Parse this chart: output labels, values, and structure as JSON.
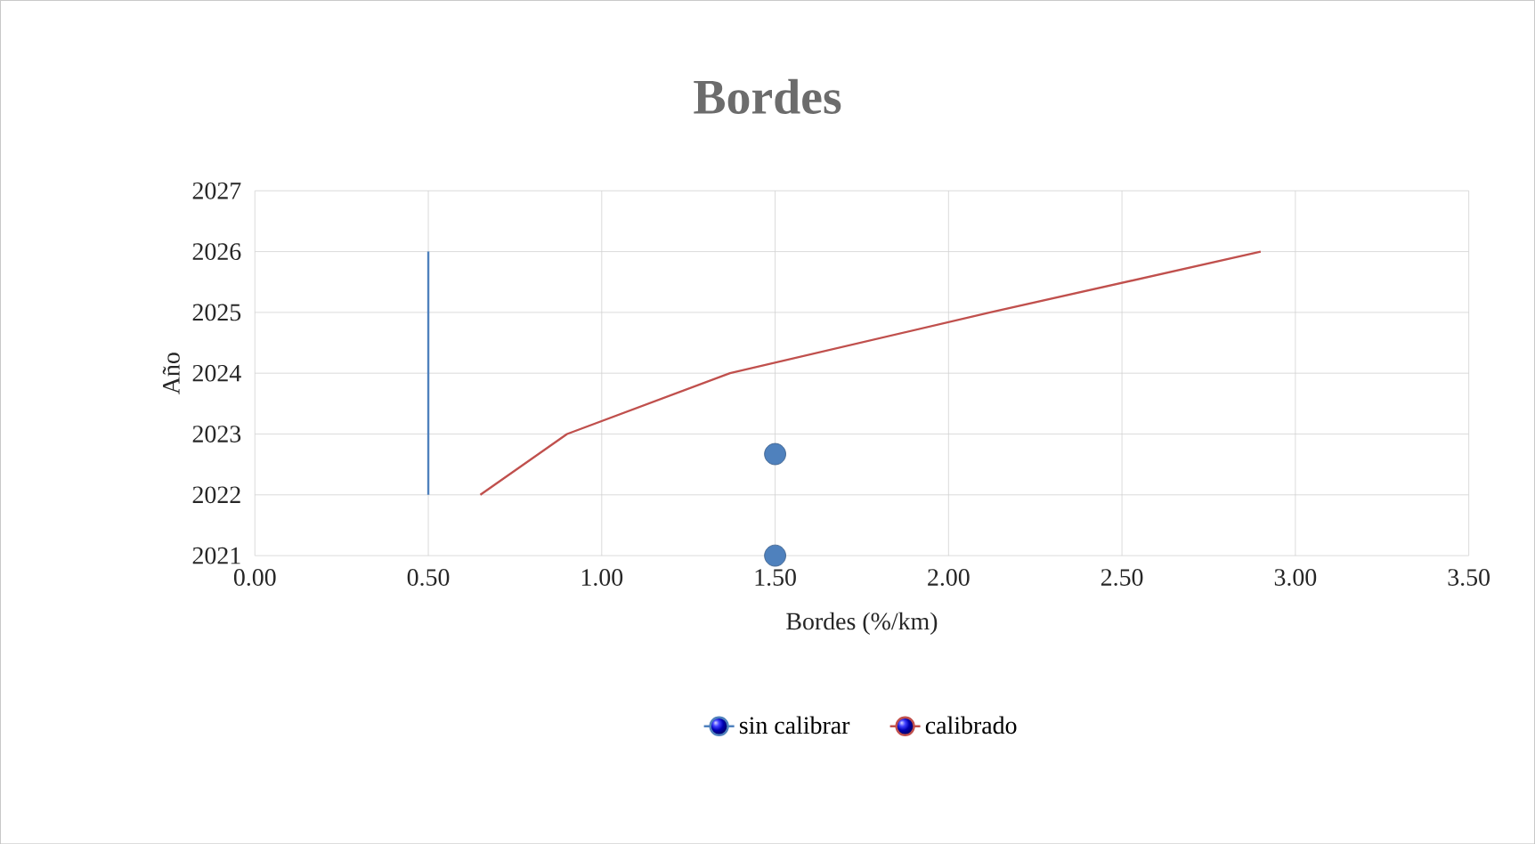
{
  "chart_data": {
    "type": "line",
    "title": "Bordes",
    "xlabel": "Bordes (%/km)",
    "ylabel": "Año",
    "xlim": [
      0,
      3.5
    ],
    "xticks": [
      {
        "value": 0,
        "label": "0.00"
      },
      {
        "value": 0.5,
        "label": "0.50"
      },
      {
        "value": 1,
        "label": "1.00"
      },
      {
        "value": 1.5,
        "label": "1.50"
      },
      {
        "value": 2,
        "label": "2.00"
      },
      {
        "value": 2.5,
        "label": "2.50"
      },
      {
        "value": 3,
        "label": "3.00"
      },
      {
        "value": 3.5,
        "label": "3.50"
      }
    ],
    "ylim": [
      2021,
      2027
    ],
    "yticks": [
      2021,
      2022,
      2023,
      2024,
      2025,
      2026,
      2027
    ],
    "grid": true,
    "legend": "bottom",
    "series": [
      {
        "name": "sin calibrar",
        "color": "#4f81bd",
        "x": [
          0.5,
          0.5,
          0.5,
          0.5,
          0.5
        ],
        "values": [
          2022,
          2023,
          2024,
          2025,
          2026
        ]
      },
      {
        "name": "calibrado",
        "color": "#c0504d",
        "x": [
          0.65,
          0.9,
          1.37,
          2.12,
          2.9
        ],
        "values": [
          2022,
          2023,
          2024,
          2025,
          2026
        ]
      },
      {
        "type": "scatter",
        "color": "#4f81bd",
        "marker": "circle",
        "x": [
          1.5,
          1.5
        ],
        "values": [
          2022.67,
          2021
        ]
      }
    ]
  }
}
